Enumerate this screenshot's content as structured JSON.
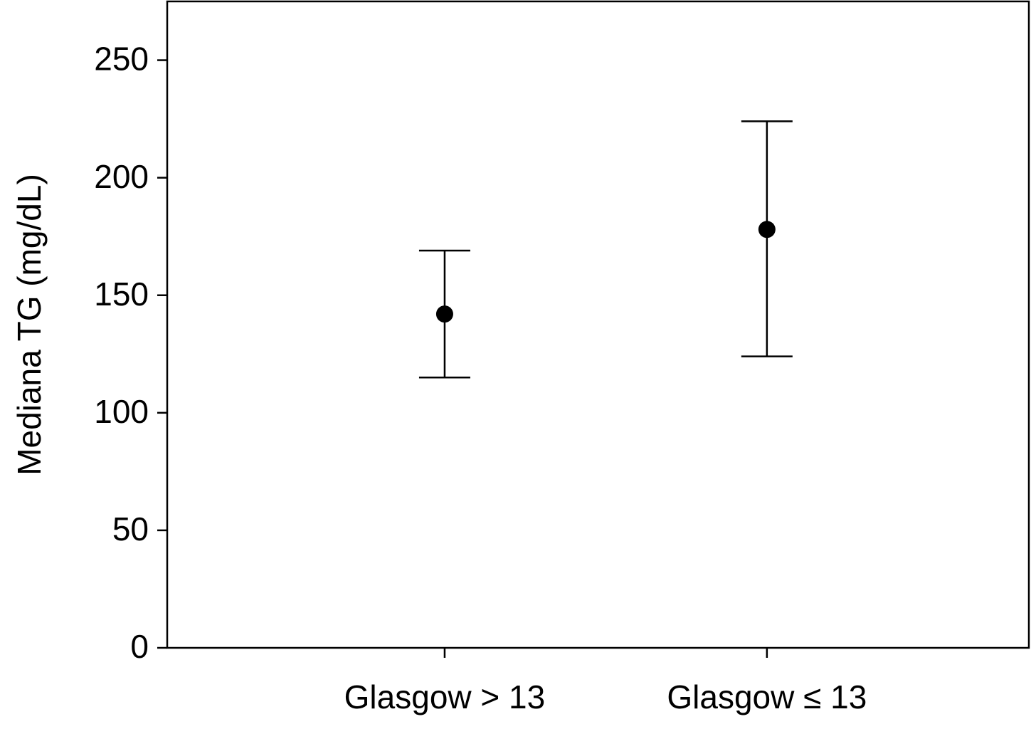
{
  "chart_data": {
    "type": "errorbar",
    "ylabel": "Mediana TG (mg/dL)",
    "categories": [
      "Glasgow > 13",
      "Glasgow ≤ 13"
    ],
    "values": [
      142,
      178
    ],
    "lower": [
      115,
      124
    ],
    "upper": [
      169,
      224
    ],
    "color": "#000000",
    "ylim": [
      0,
      275
    ],
    "yticks": [
      0,
      50,
      100,
      150,
      200,
      250
    ],
    "grid": false
  }
}
